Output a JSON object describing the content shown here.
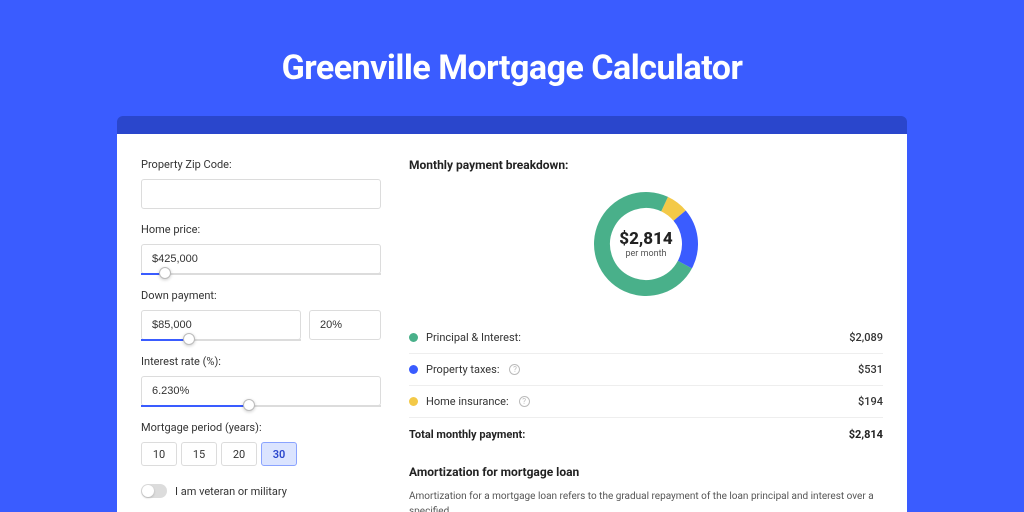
{
  "title": "Greenville Mortgage Calculator",
  "colors": {
    "page_bg": "#3a5cff",
    "header_band": "#2a46cc",
    "panel_bg": "#ffffff",
    "slider_fill": "#3a5cff",
    "slider_track": "#dcdcdc",
    "period_active_bg": "#dbe4ff",
    "period_active_border": "#8aa3ff"
  },
  "form": {
    "zip": {
      "label": "Property Zip Code:",
      "value": ""
    },
    "home_price": {
      "label": "Home price:",
      "value": "$425,000",
      "slider_pct": 10
    },
    "down_payment": {
      "label": "Down payment:",
      "value": "$85,000",
      "pct_value": "20%",
      "slider_pct": 30
    },
    "interest": {
      "label": "Interest rate (%):",
      "value": "6.230%",
      "slider_pct": 45
    },
    "period": {
      "label": "Mortgage period (years):",
      "options": [
        "10",
        "15",
        "20",
        "30"
      ],
      "active_index": 3
    },
    "veteran": {
      "label": "I am veteran or military",
      "on": false
    }
  },
  "breakdown": {
    "title": "Monthly payment breakdown:",
    "center_amount": "$2,814",
    "center_sub": "per month",
    "donut": {
      "segments": [
        {
          "label": "Principal & Interest:",
          "value": "$2,089",
          "color": "#49b08a",
          "pct": 74.2,
          "has_info": false
        },
        {
          "label": "Property taxes:",
          "value": "$531",
          "color": "#3a5cff",
          "pct": 18.9,
          "has_info": true
        },
        {
          "label": "Home insurance:",
          "value": "$194",
          "color": "#f3c948",
          "pct": 6.9,
          "has_info": true
        }
      ],
      "stroke_width": 16,
      "radius": 44
    },
    "total_label": "Total monthly payment:",
    "total_value": "$2,814"
  },
  "amortization": {
    "title": "Amortization for mortgage loan",
    "text": "Amortization for a mortgage loan refers to the gradual repayment of the loan principal and interest over a specified"
  }
}
